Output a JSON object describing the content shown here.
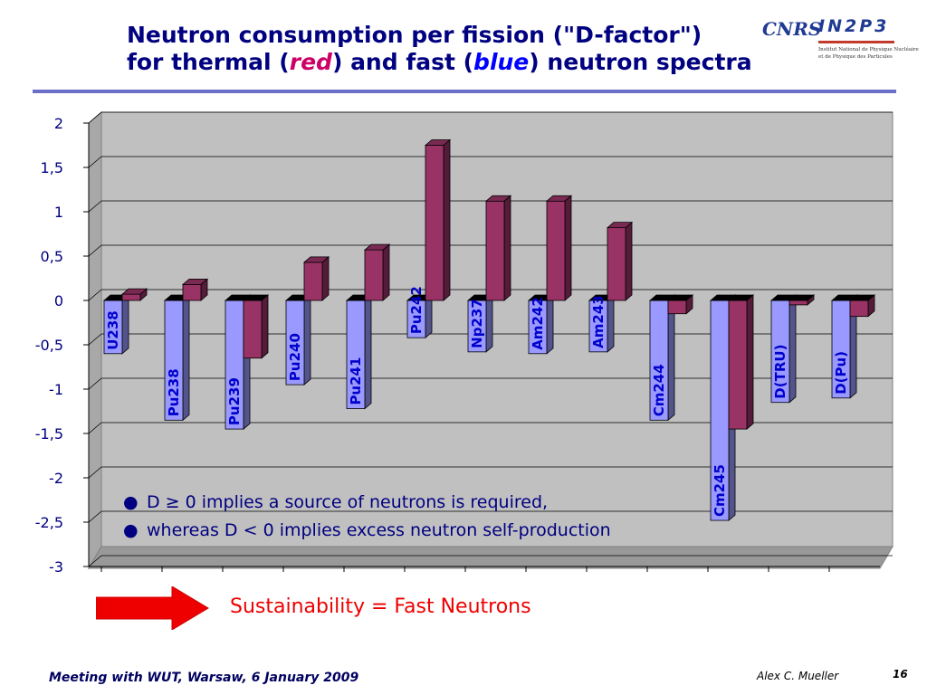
{
  "slide": {
    "title_line1": "Neutron consumption per fission (\"D-factor\")",
    "title_line2_a": "for thermal (",
    "title_red": "red",
    "title_line2_b": ") and fast (",
    "title_blue": "blue",
    "title_line2_c": ") neutron spectra",
    "notes": [
      "D ≥ 0 implies a source of neutrons is required,",
      "whereas D < 0 implies excess neutron self-production"
    ],
    "bullet_glyph": "●",
    "sustainability": "Sustainability = Fast Neutrons",
    "footer_left": "Meeting with WUT, Warsaw, 6 January 2009",
    "author": "Alex C. Mueller",
    "page_number": "16"
  },
  "logo": {
    "cnrs": "CNRS",
    "in2p3": "IN2P3",
    "line1": "Institut National de Physique Nucléaire",
    "line2": "et de Physique des Particules"
  },
  "colors": {
    "thermal": "#993366",
    "fast": "#9999ff",
    "title": "#000080",
    "accent_red": "#ee0000",
    "plot_bg": "#c0c0c0"
  },
  "chart_data": {
    "type": "bar",
    "categories": [
      "U238",
      "Pu238",
      "Pu239",
      "Pu240",
      "Pu241",
      "Pu242",
      "Np237",
      "Am242",
      "Am243",
      "Cm244",
      "Cm245",
      "D(TRU)",
      "D(Pu)"
    ],
    "series": [
      {
        "values": [
          -0.6,
          -1.35,
          -1.45,
          -0.95,
          -1.22,
          -0.42,
          -0.58,
          -0.6,
          -0.58,
          -1.35,
          -2.48,
          -1.15,
          -1.1
        ]
      },
      {
        "values": [
          0.07,
          0.18,
          -0.65,
          0.43,
          0.57,
          1.75,
          1.12,
          1.12,
          0.82,
          -0.15,
          -1.45,
          -0.05,
          -0.18
        ]
      }
    ],
    "ylim": [
      -3,
      2
    ],
    "yticks": [
      "2",
      "1,5",
      "1",
      "0,5",
      "0",
      "-0,5",
      "-1",
      "-1,5",
      "-2",
      "-2,5",
      "-3"
    ],
    "ytick_values": [
      2,
      1.5,
      1,
      0.5,
      0,
      -0.5,
      -1,
      -1.5,
      -2,
      -2.5,
      -3
    ],
    "grid": true,
    "three_d": true
  }
}
